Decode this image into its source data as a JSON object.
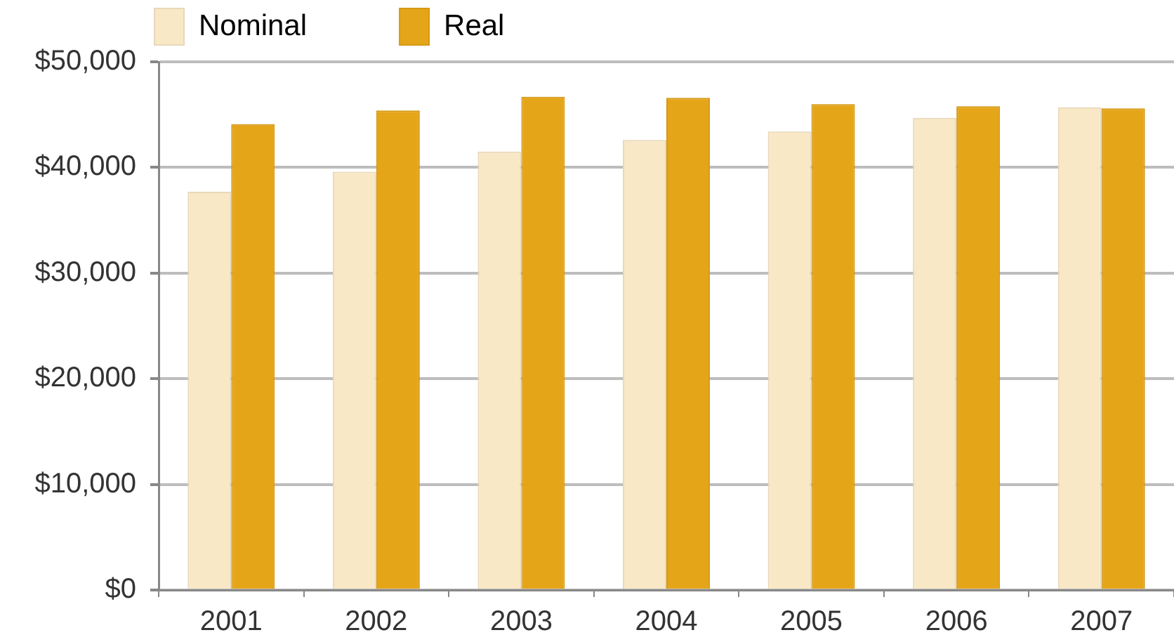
{
  "chart_data": {
    "type": "bar",
    "categories": [
      "2001",
      "2002",
      "2003",
      "2004",
      "2005",
      "2006",
      "2007"
    ],
    "series": [
      {
        "name": "Nominal",
        "color": "#f9e8c6",
        "values": [
          37700,
          39600,
          41500,
          42600,
          43400,
          44700,
          45700
        ]
      },
      {
        "name": "Real",
        "color": "#e5a518",
        "values": [
          44100,
          45400,
          46700,
          46600,
          46000,
          45800,
          45600
        ]
      }
    ],
    "ylim": [
      0,
      50000
    ],
    "yticks": [
      {
        "value": 0,
        "label": "$0"
      },
      {
        "value": 10000,
        "label": "$10,000"
      },
      {
        "value": 20000,
        "label": "$20,000"
      },
      {
        "value": 30000,
        "label": "$30,000"
      },
      {
        "value": 40000,
        "label": "$40,000"
      },
      {
        "value": 50000,
        "label": "$50,000"
      }
    ],
    "grid": "y",
    "legend": "top left"
  }
}
